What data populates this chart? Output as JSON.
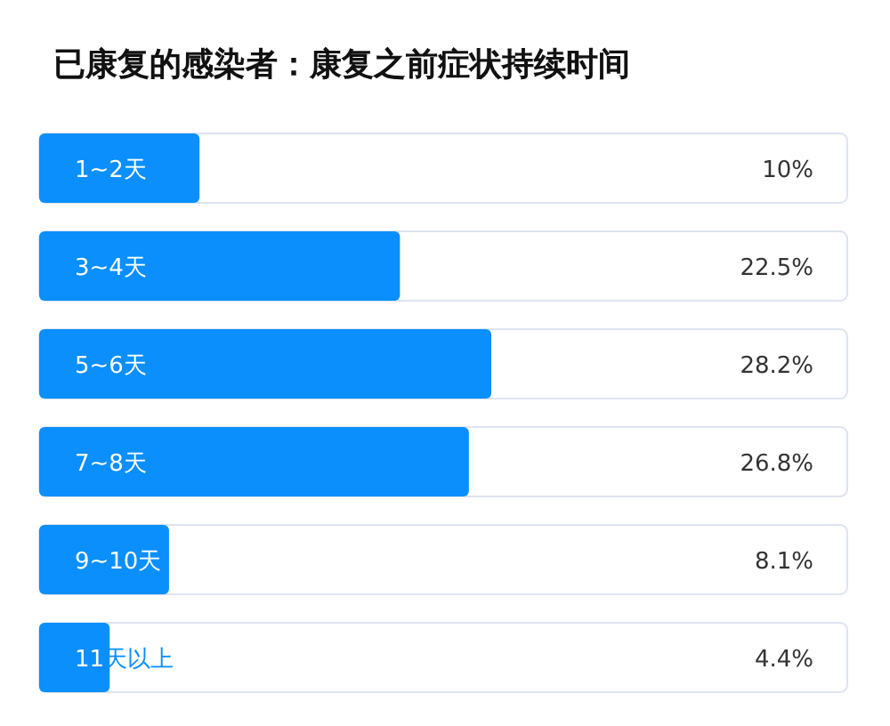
{
  "chart_data": {
    "type": "bar",
    "orientation": "horizontal",
    "title": "已康复的感染者：康复之前症状持续时间",
    "categories": [
      "1~2天",
      "3~4天",
      "5~6天",
      "7~8天",
      "9~10天",
      "11天以上"
    ],
    "values": [
      10,
      22.5,
      28.2,
      26.8,
      8.1,
      4.4
    ],
    "value_labels": [
      "10%",
      "22.5%",
      "28.2%",
      "26.8%",
      "8.1%",
      "4.4%"
    ],
    "color": "#0a8ffd",
    "xlim": [
      0,
      50.4
    ]
  }
}
